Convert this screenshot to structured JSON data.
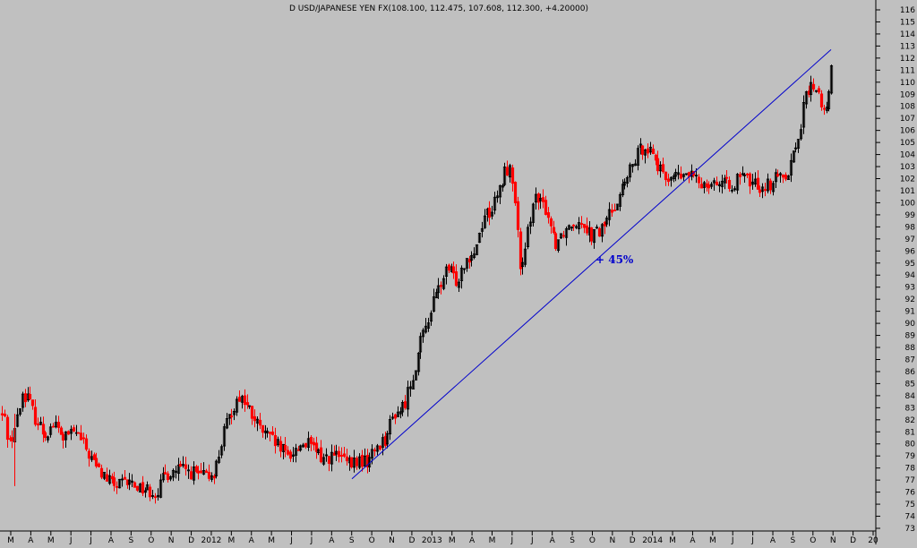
{
  "chart_data": {
    "type": "candlestick",
    "title": "D USD/JAPANESE YEN FX(108.100, 112.475, 107.608, 112.300, +4.20000)",
    "xlabel": "",
    "ylabel": "",
    "ylim": [
      73,
      117
    ],
    "y_ticks": [
      73,
      74,
      75,
      76,
      77,
      78,
      79,
      80,
      81,
      82,
      83,
      84,
      85,
      86,
      87,
      88,
      89,
      90,
      91,
      92,
      93,
      94,
      95,
      96,
      97,
      98,
      99,
      100,
      101,
      102,
      103,
      104,
      105,
      106,
      107,
      108,
      109,
      110,
      111,
      112,
      113,
      114,
      115,
      116
    ],
    "x_tick_labels": [
      "M",
      "A",
      "M",
      "J",
      "J",
      "A",
      "S",
      "O",
      "N",
      "D",
      "2012",
      "M",
      "A",
      "M",
      "J",
      "J",
      "A",
      "S",
      "O",
      "N",
      "D",
      "2013",
      "M",
      "A",
      "M",
      "J",
      "J",
      "A",
      "S",
      "O",
      "N",
      "D",
      "2014",
      "M",
      "A",
      "M",
      "J",
      "J",
      "A",
      "S",
      "O",
      "N",
      "D",
      "20"
    ],
    "grid": false,
    "colors": {
      "background": "#c0c0c0",
      "up": "#000000",
      "down": "#ff0000",
      "trendline": "#0000cc",
      "annotation": "#0000cc"
    },
    "anchors": [
      [
        0,
        82.5
      ],
      [
        5,
        82.0
      ],
      [
        10,
        80.0
      ],
      [
        18,
        81.7
      ],
      [
        25,
        84.2
      ],
      [
        30,
        84.0
      ],
      [
        40,
        82.0
      ],
      [
        50,
        80.8
      ],
      [
        60,
        81.7
      ],
      [
        70,
        80.5
      ],
      [
        85,
        81.0
      ],
      [
        100,
        79.0
      ],
      [
        110,
        77.8
      ],
      [
        120,
        77.0
      ],
      [
        130,
        76.5
      ],
      [
        145,
        76.8
      ],
      [
        160,
        76.3
      ],
      [
        175,
        76.0
      ],
      [
        185,
        77.5
      ],
      [
        200,
        77.9
      ],
      [
        215,
        77.6
      ],
      [
        230,
        77.2
      ],
      [
        240,
        77.8
      ],
      [
        250,
        81.0
      ],
      [
        260,
        83.0
      ],
      [
        268,
        84.1
      ],
      [
        280,
        82.5
      ],
      [
        290,
        81.2
      ],
      [
        300,
        80.5
      ],
      [
        310,
        79.8
      ],
      [
        320,
        79.0
      ],
      [
        330,
        79.5
      ],
      [
        340,
        80.2
      ],
      [
        350,
        79.5
      ],
      [
        360,
        78.8
      ],
      [
        370,
        79.0
      ],
      [
        380,
        78.9
      ],
      [
        390,
        78.2
      ],
      [
        400,
        78.6
      ],
      [
        410,
        78.5
      ],
      [
        420,
        79.8
      ],
      [
        430,
        80.5
      ],
      [
        440,
        82.5
      ],
      [
        450,
        83.0
      ],
      [
        460,
        85.5
      ],
      [
        470,
        88.5
      ],
      [
        480,
        91.0
      ],
      [
        490,
        93.0
      ],
      [
        500,
        94.5
      ],
      [
        510,
        93.5
      ],
      [
        520,
        95.5
      ],
      [
        530,
        96.0
      ],
      [
        540,
        99.0
      ],
      [
        550,
        99.5
      ],
      [
        560,
        101.5
      ],
      [
        565,
        103.0
      ],
      [
        570,
        102.5
      ],
      [
        575,
        100.5
      ],
      [
        580,
        94.5
      ],
      [
        585,
        94.8
      ],
      [
        590,
        98.0
      ],
      [
        595,
        100.5
      ],
      [
        600,
        100.0
      ],
      [
        610,
        99.5
      ],
      [
        620,
        96.7
      ],
      [
        630,
        97.8
      ],
      [
        640,
        98.5
      ],
      [
        650,
        98.6
      ],
      [
        660,
        97.3
      ],
      [
        670,
        97.6
      ],
      [
        680,
        99.0
      ],
      [
        690,
        100.5
      ],
      [
        700,
        102.0
      ],
      [
        710,
        103.8
      ],
      [
        720,
        104.9
      ],
      [
        730,
        104.0
      ],
      [
        740,
        102.0
      ],
      [
        750,
        102.3
      ],
      [
        760,
        102.1
      ],
      [
        770,
        102.4
      ],
      [
        780,
        101.6
      ],
      [
        790,
        101.8
      ],
      [
        800,
        101.8
      ],
      [
        810,
        101.4
      ],
      [
        820,
        101.7
      ],
      [
        830,
        102.1
      ],
      [
        840,
        101.6
      ],
      [
        850,
        101.4
      ],
      [
        860,
        101.6
      ],
      [
        870,
        102.2
      ],
      [
        880,
        102.7
      ],
      [
        885,
        104.0
      ],
      [
        890,
        105.0
      ],
      [
        895,
        107.0
      ],
      [
        900,
        109.0
      ],
      [
        905,
        109.5
      ],
      [
        910,
        109.8
      ],
      [
        915,
        108.5
      ],
      [
        920,
        107.5
      ],
      [
        924,
        107.8
      ],
      [
        928,
        111.0
      ],
      [
        930,
        112.3
      ]
    ]
  },
  "annotation": {
    "text": "+ 45%"
  }
}
